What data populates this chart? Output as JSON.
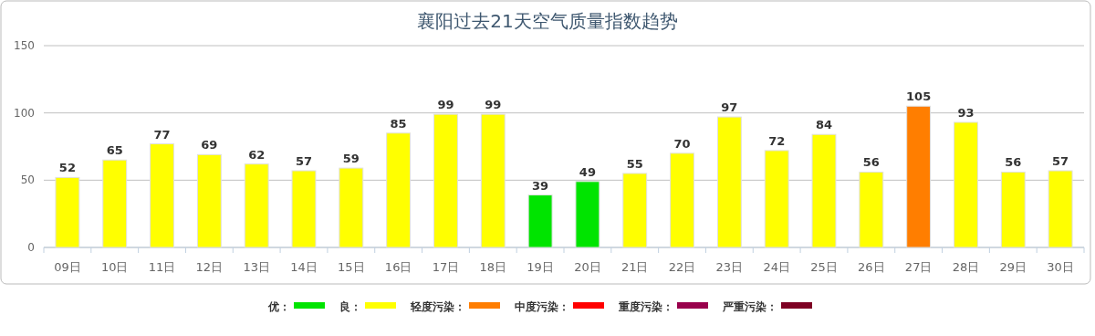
{
  "chart_data": {
    "type": "bar",
    "title": "襄阳过去21天空气质量指数趋势",
    "categories": [
      "09日",
      "10日",
      "11日",
      "12日",
      "13日",
      "14日",
      "15日",
      "16日",
      "17日",
      "18日",
      "19日",
      "20日",
      "21日",
      "22日",
      "23日",
      "24日",
      "25日",
      "26日",
      "27日",
      "28日",
      "29日",
      "30日"
    ],
    "series": [
      {
        "name": "优：",
        "color": "#00e400",
        "values": [
          null,
          null,
          null,
          null,
          null,
          null,
          null,
          null,
          null,
          null,
          39,
          49,
          null,
          null,
          null,
          null,
          null,
          null,
          null,
          null,
          null,
          null
        ]
      },
      {
        "name": "良：",
        "color": "#ffff00",
        "values": [
          52,
          65,
          77,
          69,
          62,
          57,
          59,
          85,
          99,
          99,
          null,
          null,
          55,
          70,
          97,
          72,
          84,
          56,
          null,
          93,
          56,
          57
        ]
      },
      {
        "name": "轻度污染：",
        "color": "#ff7e00",
        "values": [
          null,
          null,
          null,
          null,
          null,
          null,
          null,
          null,
          null,
          null,
          null,
          null,
          null,
          null,
          null,
          null,
          null,
          null,
          105,
          null,
          null,
          null
        ]
      },
      {
        "name": "中度污染：",
        "color": "#ff0000",
        "values": [
          null,
          null,
          null,
          null,
          null,
          null,
          null,
          null,
          null,
          null,
          null,
          null,
          null,
          null,
          null,
          null,
          null,
          null,
          null,
          null,
          null,
          null
        ]
      },
      {
        "name": "重度污染：",
        "color": "#99004c",
        "values": [
          null,
          null,
          null,
          null,
          null,
          null,
          null,
          null,
          null,
          null,
          null,
          null,
          null,
          null,
          null,
          null,
          null,
          null,
          null,
          null,
          null,
          null
        ]
      },
      {
        "name": "严重污染：",
        "color": "#7e0023",
        "values": [
          null,
          null,
          null,
          null,
          null,
          null,
          null,
          null,
          null,
          null,
          null,
          null,
          null,
          null,
          null,
          null,
          null,
          null,
          null,
          null,
          null,
          null
        ]
      }
    ],
    "ylim": [
      0,
      150
    ],
    "yticks": [
      0,
      50,
      100,
      150
    ],
    "grid": "y",
    "data_labels": true,
    "legend": "bottom"
  }
}
